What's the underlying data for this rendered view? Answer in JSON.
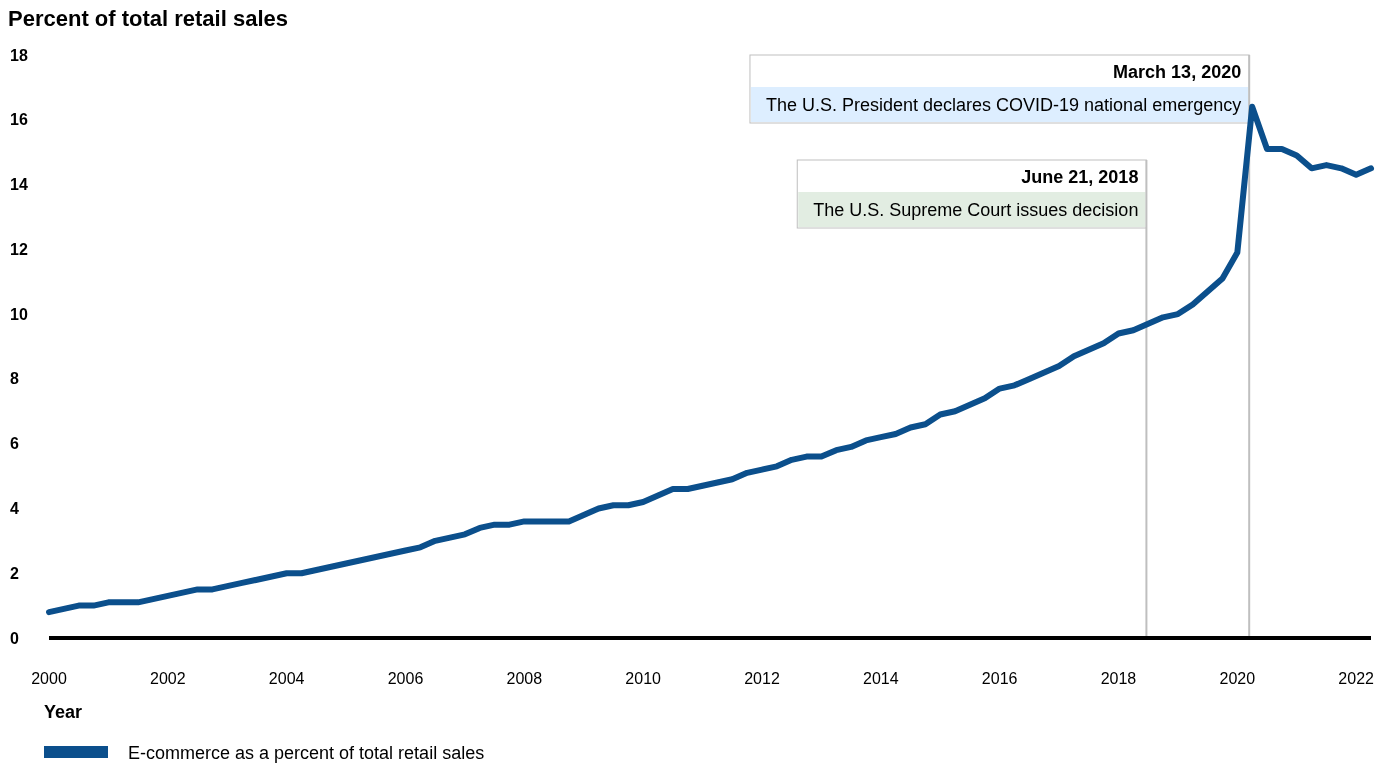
{
  "chart_data": {
    "type": "line",
    "ylabel": "Percent of total retail sales",
    "xlabel": "Year",
    "xlim": [
      2000,
      2022.25
    ],
    "xticks": [
      2000,
      2002,
      2004,
      2006,
      2008,
      2010,
      2012,
      2014,
      2016,
      2018,
      2020,
      2022
    ],
    "ylim": [
      0,
      18
    ],
    "yticks": [
      0,
      2,
      4,
      6,
      8,
      10,
      12,
      14,
      16,
      18
    ],
    "grid": false,
    "legend": "bottom",
    "marker": "none",
    "line_style": "solid",
    "series": [
      {
        "name": "E-commerce as a percent of total retail sales",
        "color": "#0b4f8c",
        "x": [
          2000,
          2000.25,
          2000.5,
          2000.75,
          2001,
          2001.25,
          2001.5,
          2001.75,
          2002,
          2002.25,
          2002.5,
          2002.75,
          2003,
          2003.25,
          2003.5,
          2003.75,
          2004,
          2004.25,
          2004.5,
          2004.75,
          2005,
          2005.25,
          2005.5,
          2005.75,
          2006,
          2006.25,
          2006.5,
          2006.75,
          2007,
          2007.25,
          2007.5,
          2007.75,
          2008,
          2008.25,
          2008.5,
          2008.75,
          2009,
          2009.25,
          2009.5,
          2009.75,
          2010,
          2010.25,
          2010.5,
          2010.75,
          2011,
          2011.25,
          2011.5,
          2011.75,
          2012,
          2012.25,
          2012.5,
          2012.75,
          2013,
          2013.25,
          2013.5,
          2013.75,
          2014,
          2014.25,
          2014.5,
          2014.75,
          2015,
          2015.25,
          2015.5,
          2015.75,
          2016,
          2016.25,
          2016.5,
          2016.75,
          2017,
          2017.25,
          2017.5,
          2017.75,
          2018,
          2018.25,
          2018.5,
          2018.75,
          2019,
          2019.25,
          2019.5,
          2019.75,
          2020,
          2020.25,
          2020.5,
          2020.75,
          2021,
          2021.25,
          2021.5,
          2021.75,
          2022,
          2022.25
        ],
        "values": [
          0.8,
          0.9,
          1.0,
          1.0,
          1.1,
          1.1,
          1.1,
          1.2,
          1.3,
          1.4,
          1.5,
          1.5,
          1.6,
          1.7,
          1.8,
          1.9,
          2.0,
          2.0,
          2.1,
          2.2,
          2.3,
          2.4,
          2.5,
          2.6,
          2.7,
          2.8,
          3.0,
          3.1,
          3.2,
          3.4,
          3.5,
          3.5,
          3.6,
          3.6,
          3.6,
          3.6,
          3.8,
          4.0,
          4.1,
          4.1,
          4.2,
          4.4,
          4.6,
          4.6,
          4.7,
          4.8,
          4.9,
          5.1,
          5.2,
          5.3,
          5.5,
          5.6,
          5.6,
          5.8,
          5.9,
          6.1,
          6.2,
          6.3,
          6.5,
          6.6,
          6.9,
          7.0,
          7.2,
          7.4,
          7.7,
          7.8,
          8.0,
          8.2,
          8.4,
          8.7,
          8.9,
          9.1,
          9.4,
          9.5,
          9.7,
          9.9,
          10.0,
          10.3,
          10.7,
          11.1,
          11.9,
          16.4,
          15.1,
          15.1,
          14.9,
          14.5,
          14.6,
          14.5,
          14.3,
          14.5
        ]
      }
    ],
    "ref_lines": [
      {
        "axis": "x",
        "value": 2020.2,
        "label": "March 13, 2020",
        "color": "#bfbfbf"
      },
      {
        "axis": "x",
        "value": 2018.47,
        "label": "June 21, 2018",
        "color": "#bfbfbf"
      }
    ],
    "annotations": [
      "The U.S. President declares COVID-19 national emergency",
      "The U.S. Supreme Court issues decision"
    ]
  }
}
